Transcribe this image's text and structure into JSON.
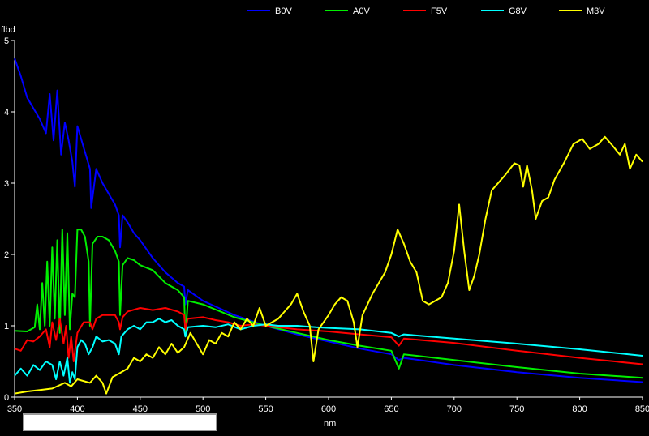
{
  "chart_data": {
    "type": "line",
    "title": "",
    "xlabel": "nm",
    "ylabel": "flbd",
    "xlim": [
      350,
      850
    ],
    "ylim": [
      0,
      5
    ],
    "x_ticks": [
      "350",
      "400",
      "450",
      "500",
      "550",
      "600",
      "650",
      "700",
      "750",
      "800",
      "850"
    ],
    "y_ticks": [
      "0",
      "1",
      "2",
      "3",
      "4",
      "5"
    ],
    "grid": false,
    "legend_position": "top",
    "series": [
      {
        "name": "B0V",
        "color": "#0000ff",
        "points": [
          [
            350,
            4.75
          ],
          [
            355,
            4.5
          ],
          [
            360,
            4.2
          ],
          [
            365,
            4.05
          ],
          [
            370,
            3.9
          ],
          [
            375,
            3.7
          ],
          [
            378,
            4.25
          ],
          [
            381,
            3.6
          ],
          [
            384,
            4.3
          ],
          [
            387,
            3.4
          ],
          [
            390,
            3.85
          ],
          [
            393,
            3.6
          ],
          [
            396,
            3.3
          ],
          [
            398,
            2.95
          ],
          [
            400,
            3.8
          ],
          [
            405,
            3.5
          ],
          [
            410,
            3.2
          ],
          [
            411,
            2.65
          ],
          [
            415,
            3.2
          ],
          [
            420,
            3.0
          ],
          [
            425,
            2.85
          ],
          [
            430,
            2.7
          ],
          [
            433,
            2.55
          ],
          [
            434,
            2.1
          ],
          [
            436,
            2.55
          ],
          [
            440,
            2.45
          ],
          [
            445,
            2.3
          ],
          [
            450,
            2.2
          ],
          [
            460,
            1.95
          ],
          [
            470,
            1.75
          ],
          [
            480,
            1.6
          ],
          [
            485,
            1.55
          ],
          [
            486,
            1.3
          ],
          [
            488,
            1.5
          ],
          [
            500,
            1.35
          ],
          [
            525,
            1.15
          ],
          [
            550,
            1.0
          ],
          [
            575,
            0.88
          ],
          [
            600,
            0.78
          ],
          [
            625,
            0.68
          ],
          [
            650,
            0.6
          ],
          [
            656,
            0.52
          ],
          [
            660,
            0.55
          ],
          [
            700,
            0.45
          ],
          [
            750,
            0.35
          ],
          [
            800,
            0.27
          ],
          [
            850,
            0.21
          ]
        ]
      },
      {
        "name": "A0V",
        "color": "#00ee00",
        "points": [
          [
            350,
            0.93
          ],
          [
            360,
            0.92
          ],
          [
            366,
            0.98
          ],
          [
            368,
            1.3
          ],
          [
            370,
            0.95
          ],
          [
            372,
            1.6
          ],
          [
            374,
            1.0
          ],
          [
            376,
            1.9
          ],
          [
            378,
            1.0
          ],
          [
            380,
            2.1
          ],
          [
            382,
            1.1
          ],
          [
            384,
            2.2
          ],
          [
            386,
            0.9
          ],
          [
            388,
            2.35
          ],
          [
            390,
            1.15
          ],
          [
            392,
            2.3
          ],
          [
            394,
            0.95
          ],
          [
            396,
            1.45
          ],
          [
            398,
            1.4
          ],
          [
            400,
            2.35
          ],
          [
            403,
            2.35
          ],
          [
            406,
            2.25
          ],
          [
            409,
            1.9
          ],
          [
            410,
            1.0
          ],
          [
            412,
            2.15
          ],
          [
            416,
            2.25
          ],
          [
            420,
            2.25
          ],
          [
            425,
            2.2
          ],
          [
            430,
            2.05
          ],
          [
            433,
            1.9
          ],
          [
            434,
            1.15
          ],
          [
            436,
            1.85
          ],
          [
            440,
            1.95
          ],
          [
            445,
            1.92
          ],
          [
            450,
            1.85
          ],
          [
            460,
            1.78
          ],
          [
            470,
            1.6
          ],
          [
            480,
            1.5
          ],
          [
            485,
            1.4
          ],
          [
            486,
            0.85
          ],
          [
            488,
            1.35
          ],
          [
            500,
            1.3
          ],
          [
            525,
            1.12
          ],
          [
            550,
            1.0
          ],
          [
            575,
            0.9
          ],
          [
            600,
            0.8
          ],
          [
            625,
            0.72
          ],
          [
            650,
            0.65
          ],
          [
            656,
            0.4
          ],
          [
            660,
            0.6
          ],
          [
            700,
            0.52
          ],
          [
            750,
            0.42
          ],
          [
            800,
            0.33
          ],
          [
            850,
            0.27
          ]
        ]
      },
      {
        "name": "F5V",
        "color": "#ff0000",
        "points": [
          [
            350,
            0.68
          ],
          [
            355,
            0.65
          ],
          [
            360,
            0.8
          ],
          [
            365,
            0.78
          ],
          [
            370,
            0.85
          ],
          [
            375,
            0.95
          ],
          [
            378,
            0.7
          ],
          [
            380,
            1.05
          ],
          [
            383,
            0.8
          ],
          [
            386,
            1.1
          ],
          [
            389,
            0.75
          ],
          [
            391,
            1.0
          ],
          [
            393,
            0.55
          ],
          [
            395,
            0.85
          ],
          [
            397,
            0.5
          ],
          [
            400,
            0.9
          ],
          [
            405,
            1.05
          ],
          [
            410,
            1.05
          ],
          [
            412,
            0.95
          ],
          [
            415,
            1.1
          ],
          [
            420,
            1.15
          ],
          [
            425,
            1.15
          ],
          [
            430,
            1.15
          ],
          [
            433,
            1.05
          ],
          [
            434,
            0.95
          ],
          [
            436,
            1.12
          ],
          [
            440,
            1.2
          ],
          [
            450,
            1.25
          ],
          [
            460,
            1.22
          ],
          [
            470,
            1.25
          ],
          [
            480,
            1.2
          ],
          [
            485,
            1.15
          ],
          [
            486,
            0.95
          ],
          [
            488,
            1.1
          ],
          [
            500,
            1.12
          ],
          [
            510,
            1.08
          ],
          [
            520,
            1.05
          ],
          [
            530,
            1.0
          ],
          [
            540,
            1.02
          ],
          [
            550,
            1.0
          ],
          [
            575,
            0.95
          ],
          [
            600,
            0.92
          ],
          [
            625,
            0.88
          ],
          [
            650,
            0.84
          ],
          [
            656,
            0.72
          ],
          [
            660,
            0.82
          ],
          [
            700,
            0.76
          ],
          [
            750,
            0.65
          ],
          [
            800,
            0.55
          ],
          [
            850,
            0.46
          ]
        ]
      },
      {
        "name": "G8V",
        "color": "#00ffff",
        "points": [
          [
            350,
            0.3
          ],
          [
            355,
            0.4
          ],
          [
            360,
            0.3
          ],
          [
            365,
            0.45
          ],
          [
            370,
            0.38
          ],
          [
            375,
            0.5
          ],
          [
            380,
            0.45
          ],
          [
            383,
            0.25
          ],
          [
            386,
            0.5
          ],
          [
            389,
            0.3
          ],
          [
            392,
            0.55
          ],
          [
            394,
            0.2
          ],
          [
            396,
            0.35
          ],
          [
            398,
            0.25
          ],
          [
            400,
            0.7
          ],
          [
            403,
            0.8
          ],
          [
            406,
            0.75
          ],
          [
            409,
            0.6
          ],
          [
            412,
            0.7
          ],
          [
            415,
            0.85
          ],
          [
            420,
            0.78
          ],
          [
            425,
            0.8
          ],
          [
            430,
            0.75
          ],
          [
            433,
            0.6
          ],
          [
            435,
            0.85
          ],
          [
            440,
            0.95
          ],
          [
            445,
            1.0
          ],
          [
            450,
            0.95
          ],
          [
            455,
            1.05
          ],
          [
            460,
            1.05
          ],
          [
            465,
            1.1
          ],
          [
            470,
            1.05
          ],
          [
            475,
            1.08
          ],
          [
            480,
            1.0
          ],
          [
            485,
            0.95
          ],
          [
            486,
            0.85
          ],
          [
            488,
            0.98
          ],
          [
            500,
            1.0
          ],
          [
            510,
            0.98
          ],
          [
            520,
            1.02
          ],
          [
            530,
            0.95
          ],
          [
            540,
            1.0
          ],
          [
            550,
            1.02
          ],
          [
            560,
            1.0
          ],
          [
            575,
            1.0
          ],
          [
            590,
            0.98
          ],
          [
            600,
            0.97
          ],
          [
            625,
            0.95
          ],
          [
            650,
            0.9
          ],
          [
            656,
            0.85
          ],
          [
            660,
            0.88
          ],
          [
            700,
            0.82
          ],
          [
            750,
            0.75
          ],
          [
            800,
            0.67
          ],
          [
            850,
            0.58
          ]
        ]
      },
      {
        "name": "M3V",
        "color": "#ffff00",
        "points": [
          [
            350,
            0.05
          ],
          [
            360,
            0.08
          ],
          [
            370,
            0.1
          ],
          [
            380,
            0.12
          ],
          [
            390,
            0.2
          ],
          [
            395,
            0.15
          ],
          [
            400,
            0.25
          ],
          [
            410,
            0.2
          ],
          [
            415,
            0.3
          ],
          [
            420,
            0.2
          ],
          [
            423,
            0.05
          ],
          [
            428,
            0.28
          ],
          [
            435,
            0.35
          ],
          [
            440,
            0.4
          ],
          [
            445,
            0.55
          ],
          [
            450,
            0.5
          ],
          [
            455,
            0.6
          ],
          [
            460,
            0.55
          ],
          [
            465,
            0.7
          ],
          [
            470,
            0.6
          ],
          [
            475,
            0.75
          ],
          [
            480,
            0.62
          ],
          [
            485,
            0.7
          ],
          [
            490,
            0.9
          ],
          [
            495,
            0.75
          ],
          [
            500,
            0.6
          ],
          [
            505,
            0.8
          ],
          [
            510,
            0.75
          ],
          [
            515,
            0.9
          ],
          [
            520,
            0.85
          ],
          [
            525,
            1.05
          ],
          [
            530,
            0.95
          ],
          [
            535,
            1.1
          ],
          [
            540,
            1.0
          ],
          [
            545,
            1.25
          ],
          [
            550,
            1.0
          ],
          [
            555,
            1.05
          ],
          [
            560,
            1.1
          ],
          [
            565,
            1.2
          ],
          [
            570,
            1.3
          ],
          [
            575,
            1.45
          ],
          [
            580,
            1.2
          ],
          [
            585,
            1.0
          ],
          [
            588,
            0.5
          ],
          [
            592,
            0.95
          ],
          [
            600,
            1.15
          ],
          [
            605,
            1.3
          ],
          [
            610,
            1.4
          ],
          [
            615,
            1.35
          ],
          [
            620,
            1.05
          ],
          [
            623,
            0.7
          ],
          [
            627,
            1.15
          ],
          [
            635,
            1.45
          ],
          [
            640,
            1.6
          ],
          [
            645,
            1.75
          ],
          [
            650,
            2.0
          ],
          [
            655,
            2.35
          ],
          [
            660,
            2.15
          ],
          [
            665,
            1.9
          ],
          [
            670,
            1.75
          ],
          [
            675,
            1.35
          ],
          [
            680,
            1.3
          ],
          [
            690,
            1.4
          ],
          [
            695,
            1.6
          ],
          [
            700,
            2.05
          ],
          [
            704,
            2.7
          ],
          [
            708,
            2.05
          ],
          [
            712,
            1.5
          ],
          [
            716,
            1.7
          ],
          [
            720,
            2.0
          ],
          [
            725,
            2.5
          ],
          [
            730,
            2.9
          ],
          [
            740,
            3.1
          ],
          [
            748,
            3.28
          ],
          [
            752,
            3.25
          ],
          [
            755,
            2.95
          ],
          [
            758,
            3.25
          ],
          [
            762,
            2.9
          ],
          [
            765,
            2.5
          ],
          [
            770,
            2.75
          ],
          [
            775,
            2.8
          ],
          [
            780,
            3.05
          ],
          [
            788,
            3.3
          ],
          [
            795,
            3.55
          ],
          [
            802,
            3.62
          ],
          [
            808,
            3.48
          ],
          [
            815,
            3.55
          ],
          [
            820,
            3.65
          ],
          [
            825,
            3.55
          ],
          [
            832,
            3.4
          ],
          [
            836,
            3.55
          ],
          [
            840,
            3.2
          ],
          [
            845,
            3.4
          ],
          [
            850,
            3.3
          ]
        ]
      }
    ]
  }
}
